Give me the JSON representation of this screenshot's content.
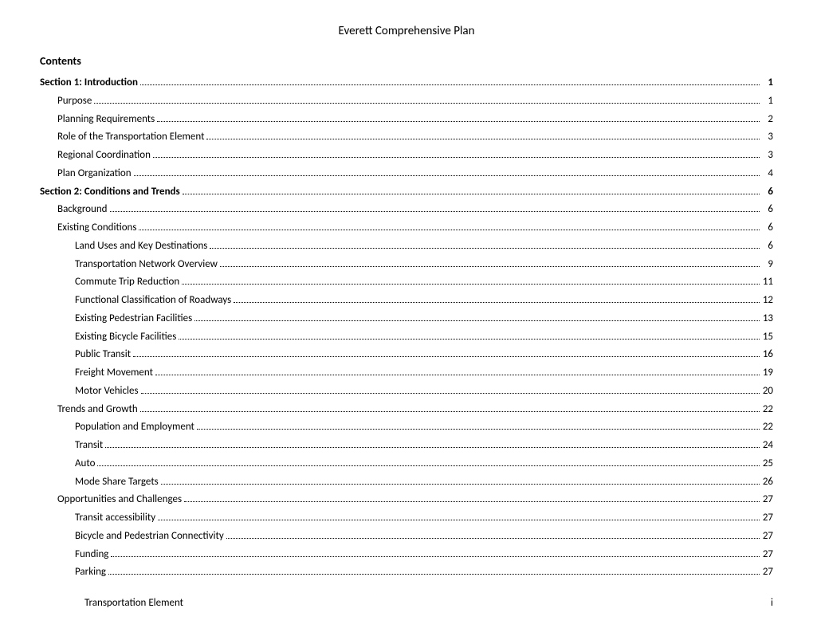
{
  "doc": {
    "title": "Everett Comprehensive Plan",
    "contents_label": "Contents",
    "footer_left": "Transportation Element",
    "footer_right": "i"
  },
  "colors": {
    "text": "#000000",
    "background": "#ffffff",
    "leader": "#000000"
  },
  "typography": {
    "family": "Calibri",
    "title_fontsize": 15,
    "body_fontsize": 13,
    "heading_fontsize": 14
  },
  "toc": [
    {
      "label": "Section 1: Introduction",
      "page": "1",
      "level": 0,
      "bold": true
    },
    {
      "label": "Purpose",
      "page": "1",
      "level": 1,
      "bold": false
    },
    {
      "label": "Planning Requirements",
      "page": "2",
      "level": 1,
      "bold": false
    },
    {
      "label": "Role of the Transportation Element",
      "page": "3",
      "level": 1,
      "bold": false
    },
    {
      "label": "Regional Coordination",
      "page": "3",
      "level": 1,
      "bold": false
    },
    {
      "label": "Plan Organization",
      "page": "4",
      "level": 1,
      "bold": false
    },
    {
      "label": "Section 2: Conditions and Trends",
      "page": "6",
      "level": 0,
      "bold": true
    },
    {
      "label": "Background",
      "page": "6",
      "level": 1,
      "bold": false
    },
    {
      "label": "Existing Conditions",
      "page": "6",
      "level": 1,
      "bold": false
    },
    {
      "label": "Land Uses and Key Destinations",
      "page": "6",
      "level": 2,
      "bold": false
    },
    {
      "label": "Transportation Network Overview",
      "page": "9",
      "level": 2,
      "bold": false
    },
    {
      "label": "Commute Trip Reduction",
      "page": "11",
      "level": 2,
      "bold": false
    },
    {
      "label": "Functional Classification of Roadways",
      "page": "12",
      "level": 2,
      "bold": false
    },
    {
      "label": "Existing Pedestrian Facilities",
      "page": "13",
      "level": 2,
      "bold": false
    },
    {
      "label": "Existing Bicycle Facilities",
      "page": "15",
      "level": 2,
      "bold": false
    },
    {
      "label": "Public Transit",
      "page": "16",
      "level": 2,
      "bold": false
    },
    {
      "label": "Freight Movement",
      "page": "19",
      "level": 2,
      "bold": false
    },
    {
      "label": "Motor Vehicles",
      "page": "20",
      "level": 2,
      "bold": false
    },
    {
      "label": "Trends and Growth",
      "page": "22",
      "level": 1,
      "bold": false
    },
    {
      "label": "Population and Employment",
      "page": "22",
      "level": 2,
      "bold": false
    },
    {
      "label": "Transit",
      "page": "24",
      "level": 2,
      "bold": false
    },
    {
      "label": "Auto",
      "page": "25",
      "level": 2,
      "bold": false
    },
    {
      "label": "Mode Share Targets",
      "page": "26",
      "level": 2,
      "bold": false
    },
    {
      "label": "Opportunities and Challenges",
      "page": "27",
      "level": 1,
      "bold": false
    },
    {
      "label": "Transit accessibility",
      "page": "27",
      "level": 2,
      "bold": false
    },
    {
      "label": "Bicycle and Pedestrian Connectivity",
      "page": "27",
      "level": 2,
      "bold": false
    },
    {
      "label": "Funding",
      "page": "27",
      "level": 2,
      "bold": false
    },
    {
      "label": "Parking",
      "page": "27",
      "level": 2,
      "bold": false
    }
  ]
}
